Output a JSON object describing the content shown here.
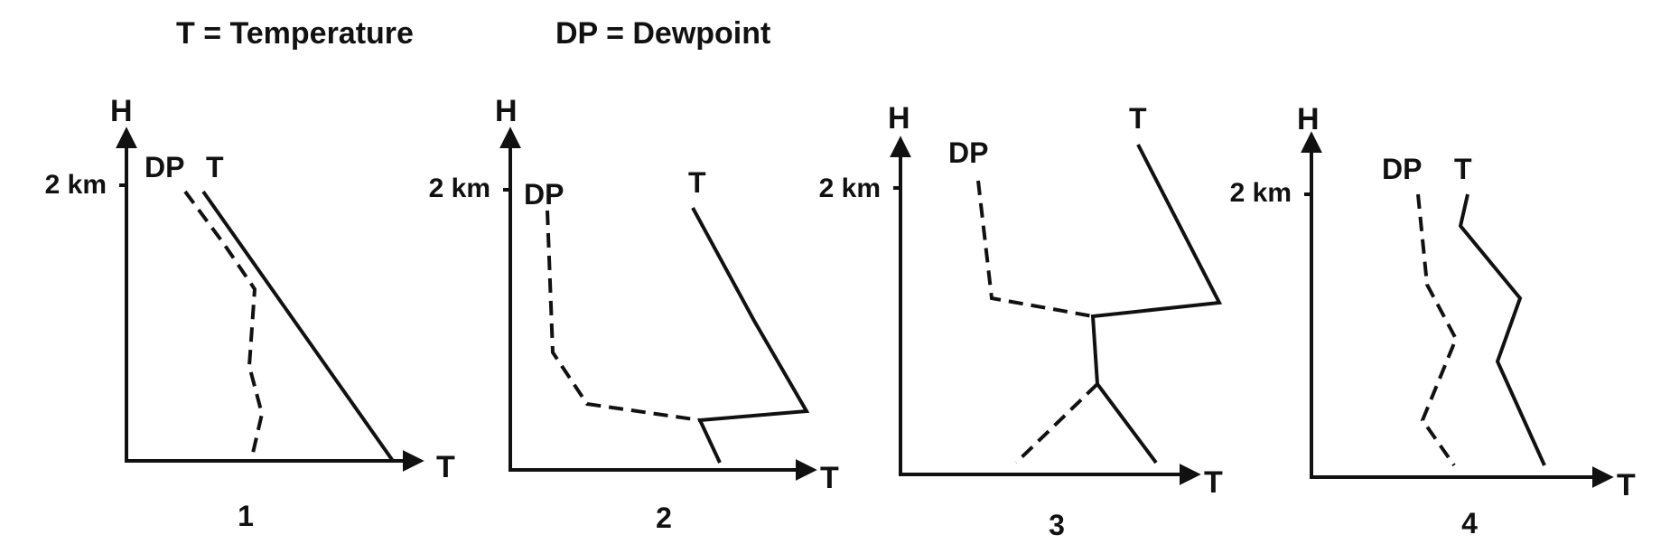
{
  "legend": {
    "t_definition": "T = Temperature",
    "dp_definition": "DP = Dewpoint"
  },
  "diagrams": [
    {
      "number": "1",
      "y_axis": "H",
      "x_axis": "T",
      "height_mark": "2 km",
      "temp_label": "T",
      "dew_label": "DP"
    },
    {
      "number": "2",
      "y_axis": "H",
      "x_axis": "T",
      "height_mark": "2 km",
      "temp_label": "T",
      "dew_label": "DP"
    },
    {
      "number": "3",
      "y_axis": "H",
      "x_axis": "T",
      "height_mark": "2 km",
      "temp_label": "T",
      "dew_label": "DP"
    },
    {
      "number": "4",
      "y_axis": "H",
      "x_axis": "T",
      "height_mark": "2 km",
      "temp_label": "T",
      "dew_label": "DP"
    }
  ],
  "styles": {
    "ink": "#111111",
    "temperature_line": "solid",
    "dewpoint_line": "dashed"
  }
}
